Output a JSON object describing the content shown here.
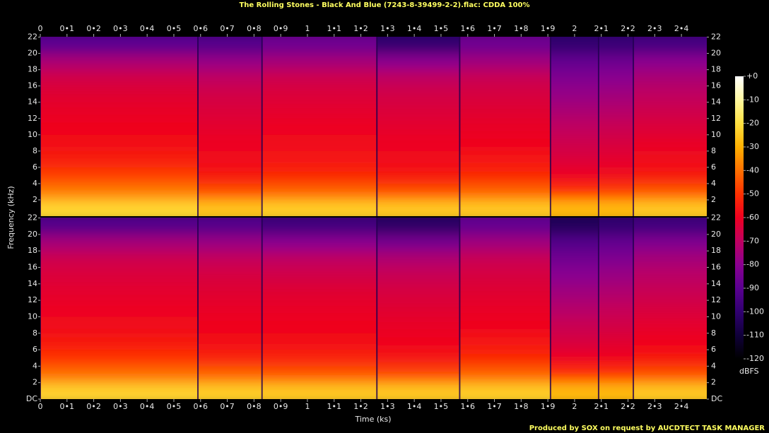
{
  "chart_data": {
    "type": "spectrogram",
    "title": "The Rolling Stones - Black And Blue (7243-8-39499-2-2).flac: CDDA 100%",
    "xlabel": "Time (ks)",
    "ylabel": "Frequency (kHz)",
    "footer": "Produced by SOX on request by AUCDTECT TASK MANAGER",
    "xlim": [
      0,
      2.495
    ],
    "xticks": [
      0,
      {
        "value": 0.1,
        "label": "0•1"
      },
      {
        "value": 0.2,
        "label": "0•2"
      },
      {
        "value": 0.3,
        "label": "0•3"
      },
      {
        "value": 0.4,
        "label": "0•4"
      },
      {
        "value": 0.5,
        "label": "0•5"
      },
      {
        "value": 0.6,
        "label": "0•6"
      },
      {
        "value": 0.7,
        "label": "0•7"
      },
      {
        "value": 0.8,
        "label": "0•8"
      },
      {
        "value": 0.9,
        "label": "0•9"
      },
      1,
      {
        "value": 1.1,
        "label": "1•1"
      },
      {
        "value": 1.2,
        "label": "1•2"
      },
      {
        "value": 1.3,
        "label": "1•3"
      },
      {
        "value": 1.4,
        "label": "1•4"
      },
      {
        "value": 1.5,
        "label": "1•5"
      },
      {
        "value": 1.6,
        "label": "1•6"
      },
      {
        "value": 1.7,
        "label": "1•7"
      },
      {
        "value": 1.8,
        "label": "1•8"
      },
      {
        "value": 1.9,
        "label": "1•9"
      },
      2,
      {
        "value": 2.1,
        "label": "2•1"
      },
      {
        "value": 2.2,
        "label": "2•2"
      },
      {
        "value": 2.3,
        "label": "2•3"
      },
      {
        "value": 2.4,
        "label": "2•4"
      }
    ],
    "ylim": [
      0,
      22.05
    ],
    "yticks": [
      {
        "value": 0,
        "label": "DC"
      },
      2,
      4,
      6,
      8,
      10,
      12,
      14,
      16,
      18,
      20,
      22
    ],
    "bands": [
      0,
      2,
      4,
      6,
      8,
      10,
      12,
      14,
      16,
      18,
      20,
      22.05
    ],
    "segments": [
      [
        0,
        0.59
      ],
      [
        0.59,
        0.83
      ],
      [
        0.83,
        1.26
      ],
      [
        1.26,
        1.57
      ],
      [
        1.57,
        1.91
      ],
      [
        1.91,
        2.09
      ],
      [
        2.09,
        2.22
      ],
      [
        2.22,
        2.495
      ]
    ],
    "channels": [
      {
        "levels": [
          [
            -22,
            -38,
            -48,
            -54,
            -57,
            -59,
            -61,
            -63,
            -66,
            -74,
            -90
          ],
          [
            -26,
            -45,
            -55,
            -58,
            -60,
            -62,
            -64,
            -66,
            -70,
            -78,
            -92
          ],
          [
            -24,
            -42,
            -52,
            -56,
            -58,
            -60,
            -62,
            -64,
            -67,
            -75,
            -86
          ],
          [
            -25,
            -45,
            -55,
            -58,
            -60,
            -62,
            -64,
            -66,
            -70,
            -80,
            -100
          ],
          [
            -25,
            -42,
            -52,
            -56,
            -59,
            -61,
            -63,
            -65,
            -68,
            -76,
            -86
          ],
          [
            -28,
            -50,
            -60,
            -64,
            -67,
            -70,
            -74,
            -78,
            -82,
            -88,
            -100
          ],
          [
            -28,
            -48,
            -58,
            -62,
            -65,
            -68,
            -72,
            -76,
            -80,
            -86,
            -98
          ],
          [
            -25,
            -44,
            -55,
            -58,
            -61,
            -64,
            -67,
            -70,
            -74,
            -80,
            -95
          ]
        ]
      },
      {
        "levels": [
          [
            -23,
            -40,
            -50,
            -55,
            -58,
            -60,
            -62,
            -64,
            -67,
            -75,
            -92
          ],
          [
            -24,
            -42,
            -53,
            -57,
            -59,
            -61,
            -63,
            -65,
            -69,
            -77,
            -92
          ],
          [
            -25,
            -44,
            -53,
            -57,
            -59,
            -61,
            -63,
            -66,
            -70,
            -80,
            -96
          ],
          [
            -25,
            -46,
            -56,
            -59,
            -61,
            -63,
            -65,
            -68,
            -73,
            -84,
            -102
          ],
          [
            -24,
            -42,
            -52,
            -56,
            -59,
            -61,
            -63,
            -65,
            -68,
            -76,
            -88
          ],
          [
            -28,
            -50,
            -60,
            -65,
            -68,
            -72,
            -76,
            -80,
            -85,
            -92,
            -104
          ],
          [
            -28,
            -49,
            -59,
            -63,
            -66,
            -69,
            -73,
            -77,
            -82,
            -88,
            -100
          ],
          [
            -25,
            -45,
            -55,
            -59,
            -62,
            -65,
            -68,
            -71,
            -75,
            -82,
            -96
          ]
        ]
      }
    ],
    "colorbar": {
      "label": "dBFS",
      "lim": [
        -120,
        0
      ],
      "ticks": [
        {
          "value": 0,
          "label": "+0"
        },
        -10,
        -20,
        -30,
        -40,
        -50,
        -60,
        -70,
        -80,
        -90,
        -100,
        -110,
        -120
      ]
    },
    "colormap": [
      "#000000",
      "#10003a",
      "#300070",
      "#5a0090",
      "#8a0090",
      "#c00060",
      "#ee0020",
      "#ff3000",
      "#ff7000",
      "#ffb000",
      "#ffe040",
      "#fff8a0",
      "#ffffff"
    ]
  }
}
